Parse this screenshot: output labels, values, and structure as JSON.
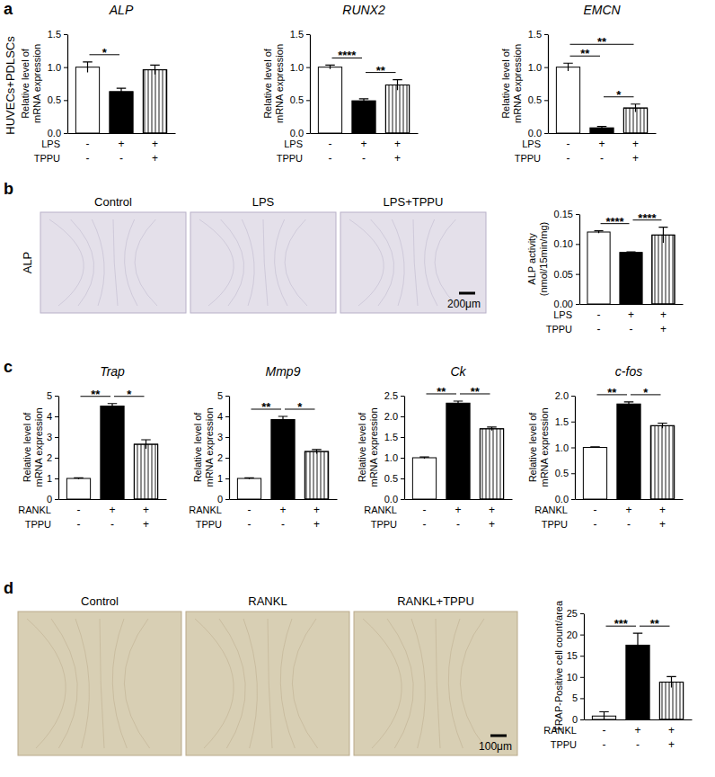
{
  "panels": [
    "a",
    "b",
    "c",
    "d"
  ],
  "row_label": "HUVECs+PDLSCs",
  "images": [
    {
      "stain": "ALP",
      "labels": [
        "Control",
        "LPS",
        "LPS+TPPU"
      ],
      "scale_bar": "200μm"
    },
    {
      "labels": [
        "Control",
        "RANKL",
        "RANKL+TPPU"
      ],
      "scale_bar": "100μm"
    }
  ],
  "chart_data": [
    {
      "type": "bar",
      "title": "ALP",
      "y_label": [
        "Relative level of",
        "mRNA expression"
      ],
      "categories": [
        null,
        null,
        null
      ],
      "values": [
        1.0,
        0.63,
        0.96
      ],
      "errors": [
        0.08,
        0.05,
        0.07
      ],
      "colors": [
        "#ffffff",
        "#000000",
        "#ffffff"
      ],
      "ylim": [
        0,
        1.5
      ],
      "yticks": [
        {
          "value": 0,
          "label": "0.0"
        },
        {
          "value": 0.5,
          "label": "0.5"
        },
        {
          "value": 1,
          "label": "1.0"
        },
        {
          "value": 1.5,
          "label": "1.5"
        }
      ],
      "treatments": [
        {
          "name": "LPS",
          "signs": [
            "-",
            "+",
            "+"
          ]
        },
        {
          "name": "TPPU",
          "signs": [
            "-",
            "-",
            "+"
          ]
        }
      ],
      "significance": [
        {
          "between": [
            0,
            1
          ],
          "label": "*"
        }
      ]
    },
    {
      "type": "bar",
      "title": "RUNX2",
      "y_label": [
        "Relative level of",
        "mRNA expression"
      ],
      "categories": [
        null,
        null,
        null
      ],
      "values": [
        1.0,
        0.49,
        0.73
      ],
      "errors": [
        0.03,
        0.03,
        0.08
      ],
      "colors": [
        "#ffffff",
        "#000000",
        "#ffffff"
      ],
      "ylim": [
        0,
        1.5
      ],
      "yticks": [
        {
          "value": 0,
          "label": "0.0"
        },
        {
          "value": 0.5,
          "label": "0.5"
        },
        {
          "value": 1,
          "label": "1.0"
        },
        {
          "value": 1.5,
          "label": "1.5"
        }
      ],
      "treatments": [
        {
          "name": "LPS",
          "signs": [
            "-",
            "+",
            "+"
          ]
        },
        {
          "name": "TPPU",
          "signs": [
            "-",
            "-",
            "+"
          ]
        }
      ],
      "significance": [
        {
          "between": [
            0,
            1
          ],
          "label": "****"
        },
        {
          "between": [
            1,
            2
          ],
          "label": "**"
        }
      ]
    },
    {
      "type": "bar",
      "title": "EMCN",
      "y_label": [
        "Relative level of",
        "mRNA expression"
      ],
      "categories": [
        null,
        null,
        null
      ],
      "values": [
        1.0,
        0.08,
        0.38
      ],
      "errors": [
        0.06,
        0.02,
        0.06
      ],
      "colors": [
        "#ffffff",
        "#000000",
        "#ffffff"
      ],
      "ylim": [
        0,
        1.5
      ],
      "yticks": [
        {
          "value": 0,
          "label": "0.0"
        },
        {
          "value": 0.5,
          "label": "0.5"
        },
        {
          "value": 1,
          "label": "1.0"
        },
        {
          "value": 1.5,
          "label": "1.5"
        }
      ],
      "treatments": [
        {
          "name": "LPS",
          "signs": [
            "-",
            "+",
            "+"
          ]
        },
        {
          "name": "TPPU",
          "signs": [
            "-",
            "-",
            "+"
          ]
        }
      ],
      "significance": [
        {
          "between": [
            0,
            1
          ],
          "label": "**"
        },
        {
          "between": [
            1,
            2
          ],
          "label": "*"
        },
        {
          "between": [
            0,
            2
          ],
          "label": "**"
        }
      ]
    },
    {
      "type": "bar",
      "y_label": [
        "ALP activity",
        "(nmol/15min/mg)"
      ],
      "categories": [
        null,
        null,
        null
      ],
      "values": [
        0.12,
        0.086,
        0.115
      ],
      "errors": [
        0.002,
        0.001,
        0.013
      ],
      "colors": [
        "#ffffff",
        "#000000",
        "#ffffff"
      ],
      "ylim": [
        0,
        0.15
      ],
      "yticks": [
        {
          "value": 0,
          "label": "0.00"
        },
        {
          "value": 0.05,
          "label": "0.05"
        },
        {
          "value": 0.1,
          "label": "0.10"
        },
        {
          "value": 0.15,
          "label": "0.15"
        }
      ],
      "treatments": [
        {
          "name": "LPS",
          "signs": [
            "-",
            "+",
            "+"
          ]
        },
        {
          "name": "TPPU",
          "signs": [
            "-",
            "-",
            "+"
          ]
        }
      ],
      "significance": [
        {
          "between": [
            0,
            1
          ],
          "label": "****"
        },
        {
          "between": [
            1,
            2
          ],
          "label": "****"
        }
      ]
    },
    {
      "type": "bar",
      "title": "Trap",
      "y_label": [
        "Relative level of",
        "mRNA expression"
      ],
      "categories": [
        null,
        null,
        null
      ],
      "values": [
        1.0,
        4.5,
        2.65
      ],
      "errors": [
        0.03,
        0.12,
        0.22
      ],
      "colors": [
        "#ffffff",
        "#000000",
        "#ffffff"
      ],
      "ylim": [
        0,
        5
      ],
      "yticks": [
        0,
        1,
        2,
        3,
        4,
        5
      ],
      "treatments": [
        {
          "name": "RANKL",
          "signs": [
            "-",
            "+",
            "+"
          ]
        },
        {
          "name": "TPPU",
          "signs": [
            "-",
            "-",
            "+"
          ]
        }
      ],
      "significance": [
        {
          "between": [
            0,
            1
          ],
          "label": "**"
        },
        {
          "between": [
            1,
            2
          ],
          "label": "*"
        }
      ]
    },
    {
      "type": "bar",
      "title": "Mmp9",
      "y_label": [
        "Relative level of",
        "mRNA expression"
      ],
      "categories": [
        null,
        null,
        null
      ],
      "values": [
        1.0,
        3.85,
        2.3
      ],
      "errors": [
        0.03,
        0.15,
        0.1
      ],
      "colors": [
        "#ffffff",
        "#000000",
        "#ffffff"
      ],
      "ylim": [
        0,
        5
      ],
      "yticks": [
        0,
        1,
        2,
        3,
        4,
        5
      ],
      "treatments": [
        {
          "name": "RANKL",
          "signs": [
            "-",
            "+",
            "+"
          ]
        },
        {
          "name": "TPPU",
          "signs": [
            "-",
            "-",
            "+"
          ]
        }
      ],
      "significance": [
        {
          "between": [
            0,
            1
          ],
          "label": "**"
        },
        {
          "between": [
            1,
            2
          ],
          "label": "*"
        }
      ]
    },
    {
      "type": "bar",
      "title": "Ck",
      "y_label": [
        "Relative level of",
        "mRNA expression"
      ],
      "categories": [
        null,
        null,
        null
      ],
      "values": [
        1.0,
        2.32,
        1.7
      ],
      "errors": [
        0.02,
        0.05,
        0.04
      ],
      "colors": [
        "#ffffff",
        "#000000",
        "#ffffff"
      ],
      "ylim": [
        0,
        2.5
      ],
      "yticks": [
        {
          "value": 0,
          "label": "0.0"
        },
        {
          "value": 0.5,
          "label": "0.5"
        },
        {
          "value": 1,
          "label": "1.0"
        },
        {
          "value": 1.5,
          "label": "1.5"
        },
        {
          "value": 2,
          "label": "2.0"
        },
        {
          "value": 2.5,
          "label": "2.5"
        }
      ],
      "treatments": [
        {
          "name": "RANKL",
          "signs": [
            "-",
            "+",
            "+"
          ]
        },
        {
          "name": "TPPU",
          "signs": [
            "-",
            "-",
            "+"
          ]
        }
      ],
      "significance": [
        {
          "between": [
            0,
            1
          ],
          "label": "**"
        },
        {
          "between": [
            1,
            2
          ],
          "label": "**"
        }
      ]
    },
    {
      "type": "bar",
      "title": "c-fos",
      "y_label": [
        "Relative level of",
        "mRNA expression"
      ],
      "categories": [
        null,
        null,
        null
      ],
      "values": [
        1.0,
        1.84,
        1.42
      ],
      "errors": [
        0.01,
        0.04,
        0.05
      ],
      "colors": [
        "#ffffff",
        "#000000",
        "#ffffff"
      ],
      "ylim": [
        0,
        2
      ],
      "yticks": [
        {
          "value": 0,
          "label": "0.0"
        },
        {
          "value": 0.5,
          "label": "0.5"
        },
        {
          "value": 1,
          "label": "1.0"
        },
        {
          "value": 1.5,
          "label": "1.5"
        },
        {
          "value": 2,
          "label": "2.0"
        }
      ],
      "treatments": [
        {
          "name": "RANKL",
          "signs": [
            "-",
            "+",
            "+"
          ]
        },
        {
          "name": "TPPU",
          "signs": [
            "-",
            "-",
            "+"
          ]
        }
      ],
      "significance": [
        {
          "between": [
            0,
            1
          ],
          "label": "**"
        },
        {
          "between": [
            1,
            2
          ],
          "label": "*"
        }
      ]
    },
    {
      "type": "bar",
      "y_label": [
        "TRAP-Positive cell count/area"
      ],
      "categories": [
        null,
        null,
        null
      ],
      "values": [
        0.8,
        17.5,
        8.8
      ],
      "errors": [
        1.0,
        2.8,
        1.3
      ],
      "colors": [
        "#ffffff",
        "#000000",
        "#ffffff"
      ],
      "ylim": [
        0,
        25
      ],
      "yticks": [
        0,
        5,
        10,
        15,
        20,
        25
      ],
      "treatments": [
        {
          "name": "RANKL",
          "signs": [
            "-",
            "+",
            "+"
          ]
        },
        {
          "name": "TPPU",
          "signs": [
            "-",
            "-",
            "+"
          ]
        }
      ],
      "significance": [
        {
          "between": [
            0,
            1
          ],
          "label": "***"
        },
        {
          "between": [
            1,
            2
          ],
          "label": "**"
        }
      ]
    }
  ]
}
